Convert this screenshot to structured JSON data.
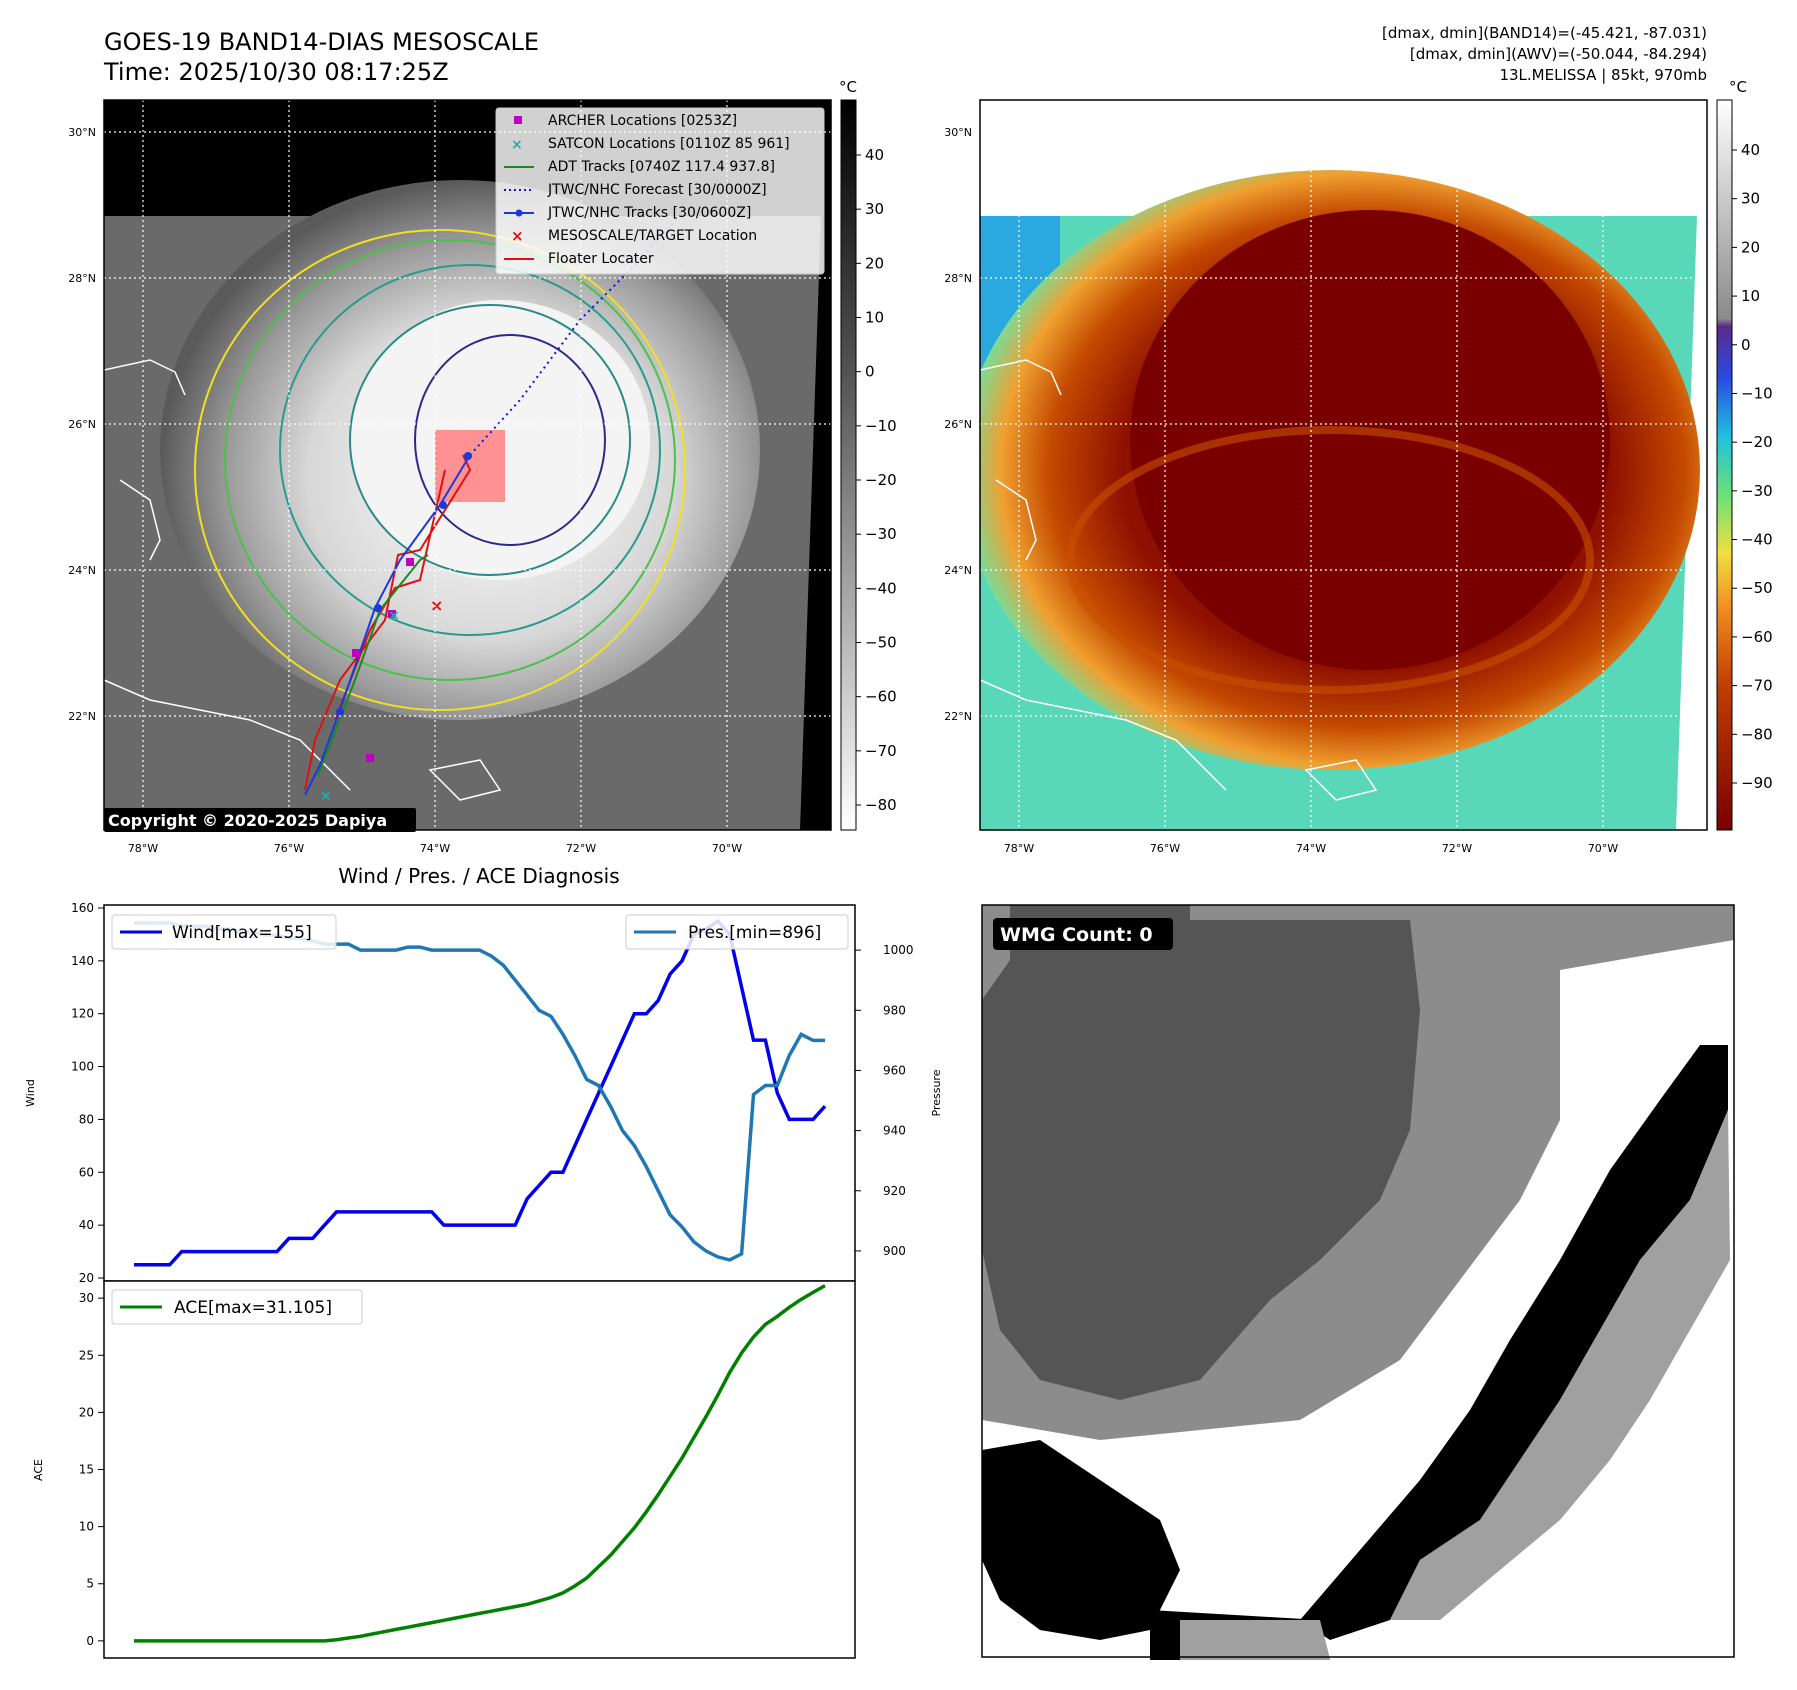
{
  "header": {
    "title": "GOES-19 BAND14-DIAS MESOSCALE",
    "time": "Time: 2025/10/30 08:17:25Z",
    "info_line1": "[dmax, dmin](BAND14)=(-45.421, -87.031)",
    "info_line2": "[dmax, dmin](AWV)=(-50.044, -84.294)",
    "info_line3": "13L.MELISSA | 85kt, 970mb",
    "copyright": "Copyright © 2020-2025 Dapiya"
  },
  "colors": {
    "archer": "#c000c0",
    "satcon": "#17b0b0",
    "adt": "#1a8a1a",
    "forecast": "#1010e0",
    "tracks": "#1a3ae0",
    "target": "#e01010",
    "floater": "#e01010",
    "wind_line": "#0000ee",
    "pres_line": "#1f77b4",
    "ace_line": "#008000"
  },
  "map_left": {
    "lat_labels": [
      "30°N",
      "28°N",
      "26°N",
      "24°N",
      "22°N"
    ],
    "lon_labels": [
      "78°W",
      "76°W",
      "74°W",
      "72°W",
      "70°W"
    ],
    "colorbar_unit": "°C",
    "colorbar_ticks": [
      "40",
      "30",
      "20",
      "10",
      "0",
      "−10",
      "−20",
      "−30",
      "−40",
      "−50",
      "−60",
      "−70",
      "−80"
    ],
    "legend": [
      {
        "label": "ARCHER Locations [0253Z]",
        "marker": "square",
        "color": "#c000c0"
      },
      {
        "label": "SATCON Locations [0110Z 85 961]",
        "marker": "x",
        "color": "#17b0b0"
      },
      {
        "label": "ADT Tracks [0740Z 117.4 937.8]",
        "marker": "line",
        "color": "#1a8a1a"
      },
      {
        "label": "JTWC/NHC Forecast [30/0000Z]",
        "marker": "dotted",
        "color": "#1010e0"
      },
      {
        "label": "JTWC/NHC Tracks [30/0600Z]",
        "marker": "line-dot",
        "color": "#1a3ae0"
      },
      {
        "label": "MESOSCALE/TARGET Location",
        "marker": "x",
        "color": "#e01010"
      },
      {
        "label": "Floater Locater",
        "marker": "line",
        "color": "#e01010"
      }
    ]
  },
  "map_right": {
    "lat_labels": [
      "30°N",
      "28°N",
      "26°N",
      "24°N",
      "22°N"
    ],
    "lon_labels": [
      "78°W",
      "76°W",
      "74°W",
      "72°W",
      "70°W"
    ],
    "colorbar_unit": "°C",
    "colorbar_ticks": [
      "40",
      "30",
      "20",
      "10",
      "0",
      "−10",
      "−20",
      "−30",
      "−40",
      "−50",
      "−60",
      "−70",
      "−80",
      "−90"
    ]
  },
  "chart_data": [
    {
      "type": "line",
      "title": "Wind / Pres. / ACE Diagnosis",
      "ylabel": "Wind",
      "ylabel_right": "Pressure",
      "ylim": [
        20,
        160
      ],
      "ylim_right": [
        890,
        1015
      ],
      "yticks": [
        20,
        40,
        60,
        80,
        100,
        120,
        140,
        160
      ],
      "yticks_right": [
        900,
        920,
        940,
        960,
        980,
        1000
      ],
      "series": [
        {
          "name": "Wind[max=155]",
          "axis": "left",
          "values": [
            25,
            25,
            25,
            25,
            30,
            30,
            30,
            30,
            30,
            30,
            30,
            30,
            30,
            35,
            35,
            35,
            40,
            45,
            45,
            45,
            45,
            45,
            45,
            45,
            45,
            45,
            40,
            40,
            40,
            40,
            40,
            40,
            40,
            50,
            55,
            60,
            60,
            70,
            80,
            90,
            100,
            110,
            120,
            120,
            125,
            135,
            140,
            150,
            152,
            155,
            150,
            130,
            110,
            110,
            90,
            80,
            80,
            80,
            85
          ]
        },
        {
          "name": "Pres.[min=896]",
          "axis": "right",
          "values": [
            1009,
            1009,
            1009,
            1009,
            1008,
            1008,
            1008,
            1007,
            1007,
            1006,
            1006,
            1005,
            1005,
            1004,
            1004,
            1003,
            1002,
            1002,
            1002,
            1000,
            1000,
            1000,
            1000,
            1001,
            1001,
            1000,
            1000,
            1000,
            1000,
            1000,
            998,
            995,
            990,
            985,
            980,
            978,
            972,
            965,
            957,
            955,
            948,
            940,
            935,
            928,
            920,
            912,
            908,
            903,
            900,
            898,
            897,
            899,
            952,
            955,
            955,
            965,
            972,
            970,
            970
          ]
        }
      ]
    },
    {
      "type": "line",
      "ylabel": "ACE",
      "ylim": [
        -1.5,
        31.5
      ],
      "yticks": [
        0,
        5,
        10,
        15,
        20,
        25,
        30
      ],
      "series": [
        {
          "name": "ACE[max=31.105]",
          "values": [
            0,
            0,
            0,
            0,
            0,
            0,
            0,
            0,
            0,
            0,
            0,
            0,
            0,
            0,
            0,
            0,
            0,
            0.1,
            0.25,
            0.4,
            0.6,
            0.8,
            1.0,
            1.2,
            1.4,
            1.6,
            1.8,
            2.0,
            2.2,
            2.4,
            2.6,
            2.8,
            3.0,
            3.2,
            3.5,
            3.8,
            4.2,
            4.8,
            5.5,
            6.5,
            7.5,
            8.7,
            9.9,
            11.3,
            12.8,
            14.4,
            16.0,
            17.8,
            19.6,
            21.5,
            23.5,
            25.2,
            26.6,
            27.7,
            28.4,
            29.2,
            29.9,
            30.5,
            31.1
          ]
        }
      ]
    },
    {
      "type": "heatmap",
      "annotation": "WMG Count: 0",
      "grayscale": true
    }
  ]
}
